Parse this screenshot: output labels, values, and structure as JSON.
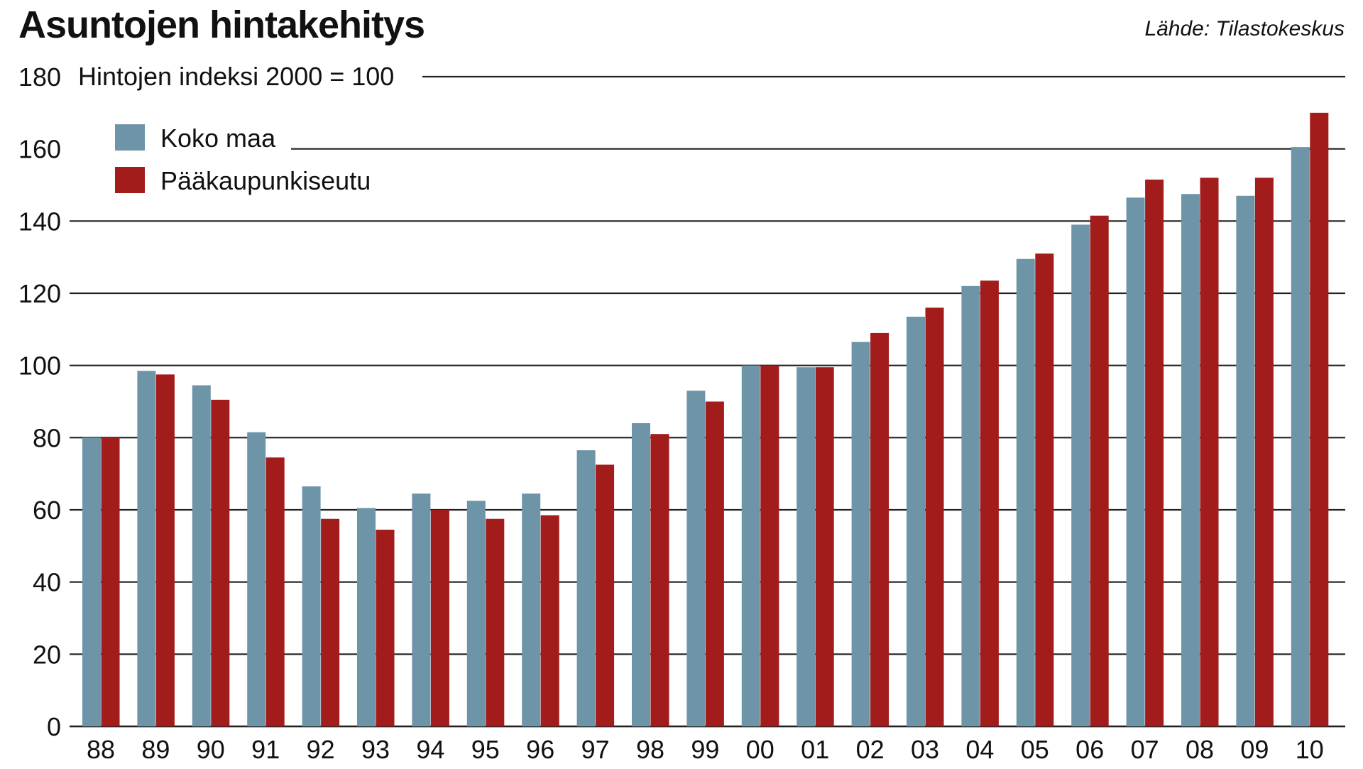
{
  "header": {
    "title": "Asuntojen hintakehitys",
    "source": "Lähde: Tilastokeskus"
  },
  "chart_data": {
    "type": "bar",
    "title": "Asuntojen hintakehitys",
    "subtitle": "Hintojen indeksi 2000 = 100",
    "source": "Lähde: Tilastokeskus",
    "xlabel": "",
    "ylabel": "",
    "ylim": [
      0,
      180
    ],
    "yticks": [
      "0",
      "20",
      "40",
      "60",
      "80",
      "100",
      "120",
      "140",
      "160",
      "180"
    ],
    "grid": true,
    "legend_position": "top-left",
    "categories": [
      "88",
      "89",
      "90",
      "91",
      "92",
      "93",
      "94",
      "95",
      "96",
      "97",
      "98",
      "99",
      "00",
      "01",
      "02",
      "03",
      "04",
      "05",
      "06",
      "07",
      "08",
      "09",
      "10"
    ],
    "series": [
      {
        "name": "Koko maa",
        "color": "#6e94a8",
        "values": [
          80,
          98.5,
          94.5,
          81.5,
          66.5,
          60.5,
          64.5,
          62.5,
          64.5,
          76.5,
          84,
          93,
          100,
          99.5,
          106.5,
          113.5,
          122,
          129.5,
          139,
          146.5,
          147.5,
          147,
          160.5
        ]
      },
      {
        "name": "Pääkaupunkiseutu",
        "color": "#a31c1c",
        "values": [
          80,
          97.5,
          90.5,
          74.5,
          57.5,
          54.5,
          60,
          57.5,
          58.5,
          72.5,
          81,
          90,
          100,
          99.5,
          109,
          116,
          123.5,
          131,
          141.5,
          151.5,
          152,
          152,
          170
        ]
      }
    ]
  }
}
